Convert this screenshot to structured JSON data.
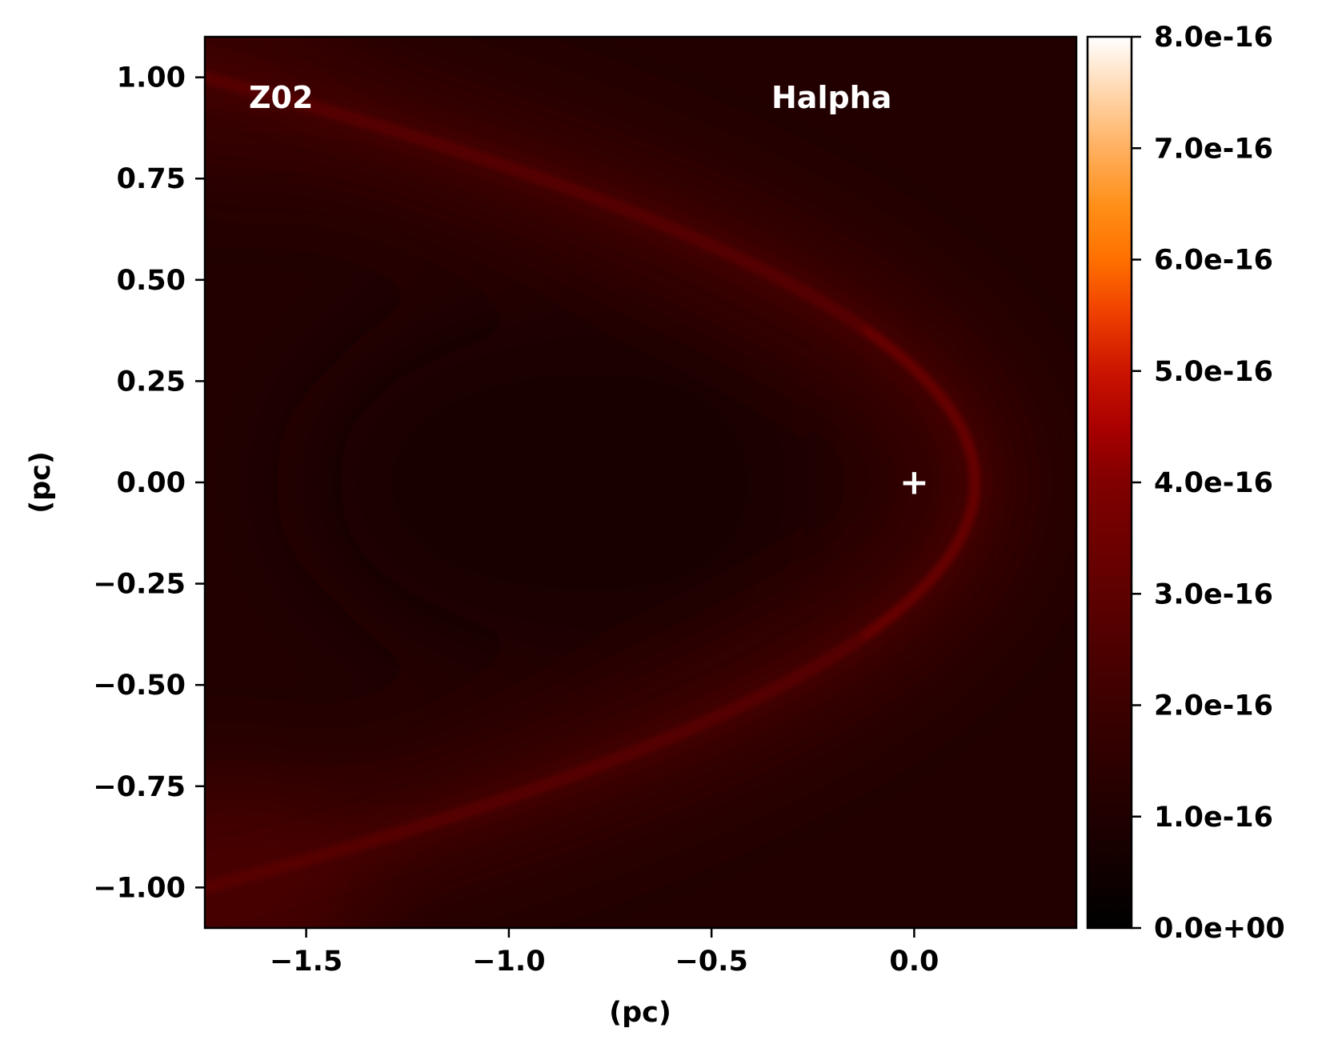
{
  "chart_data": {
    "type": "heatmap",
    "title": "",
    "xlabel": "(pc)",
    "ylabel": "(pc)",
    "xlim": [
      -1.75,
      0.4
    ],
    "ylim": [
      -1.1,
      1.1
    ],
    "xticks": [
      -1.5,
      -1.0,
      -0.5,
      0.0
    ],
    "xtick_labels": [
      "−1.5",
      "−1.0",
      "−0.5",
      "0.0"
    ],
    "yticks": [
      1.0,
      0.75,
      0.5,
      0.25,
      0.0,
      -0.25,
      -0.5,
      -0.75,
      -1.0
    ],
    "ytick_labels": [
      "1.00",
      "0.75",
      "0.50",
      "0.25",
      "0.00",
      "−0.25",
      "−0.50",
      "−0.75",
      "−1.00"
    ],
    "colorbar": {
      "colormap": "gist_heat",
      "range": [
        0.0,
        8e-16
      ],
      "ticks": [
        0,
        1e-16,
        2e-16,
        3e-16,
        4e-16,
        5e-16,
        6e-16,
        7e-16,
        8e-16
      ],
      "tick_labels": [
        "0.0e+00",
        "1.0e-16",
        "2.0e-16",
        "3.0e-16",
        "4.0e-16",
        "5.0e-16",
        "6.0e-16",
        "7.0e-16",
        "8.0e-16"
      ]
    },
    "annotations": {
      "model": "Z02",
      "line": "Halpha",
      "star_marker": "+"
    },
    "star_position": [
      0.0,
      0.0
    ],
    "bow_shock": {
      "apex": [
        0.15,
        0.0
      ],
      "standoff": 0.15,
      "wing_end": [
        -1.75,
        1.0
      ]
    },
    "grid": false
  }
}
